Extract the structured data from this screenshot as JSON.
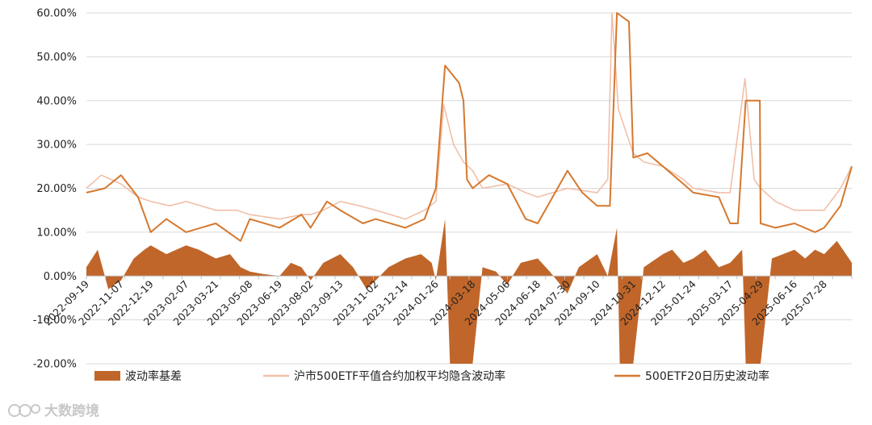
{
  "watermark": {
    "text": "大数跨境",
    "icon": "logo-icon"
  },
  "chart_data": {
    "type": "line",
    "title": "",
    "xlabel": "",
    "ylabel": "",
    "ylim": [
      -0.2,
      0.6
    ],
    "y_ticks": [
      "60.00%",
      "50.00%",
      "40.00%",
      "30.00%",
      "20.00%",
      "10.00%",
      "0.00%",
      "-10.00%",
      "-20.00%"
    ],
    "x_ticks": [
      "2022-09-19",
      "2022-11-07",
      "2022-12-19",
      "2023-02-07",
      "2023-03-21",
      "2023-05-08",
      "2023-06-19",
      "2023-08-02",
      "2023-09-13",
      "2023-11-02",
      "2023-12-14",
      "2024-01-26",
      "2024-03-18",
      "2024-05-06",
      "2024-06-18",
      "2024-07-30",
      "2024-09-10",
      "2024-10-31",
      "2024-12-12",
      "2025-01-24",
      "2025-03-17",
      "2025-04-29",
      "2025-06-16",
      "2025-07-28"
    ],
    "x_range": [
      "2022-09-19",
      "2025-09-05"
    ],
    "grid": "horizontal",
    "legend_position": "bottom",
    "colors": {
      "basis": "#c0662a",
      "implied": "#f2bfa8",
      "historical": "#d5782e",
      "axis": "#bfbfbf",
      "grid": "#d9d9d9"
    },
    "series": [
      {
        "name": "波动率基差",
        "type": "area",
        "points": [
          [
            "2022-09-19",
            0.02
          ],
          [
            "2022-10-05",
            0.06
          ],
          [
            "2022-10-20",
            -0.03
          ],
          [
            "2022-11-07",
            -0.01
          ],
          [
            "2022-11-25",
            0.04
          ],
          [
            "2022-12-10",
            0.06
          ],
          [
            "2022-12-19",
            0.07
          ],
          [
            "2023-01-10",
            0.05
          ],
          [
            "2023-02-07",
            0.07
          ],
          [
            "2023-02-25",
            0.06
          ],
          [
            "2023-03-21",
            0.04
          ],
          [
            "2023-04-10",
            0.05
          ],
          [
            "2023-04-25",
            0.02
          ],
          [
            "2023-05-08",
            0.01
          ],
          [
            "2023-05-25",
            0.005
          ],
          [
            "2023-06-19",
            0.0
          ],
          [
            "2023-07-05",
            0.03
          ],
          [
            "2023-07-20",
            0.02
          ],
          [
            "2023-08-02",
            -0.01
          ],
          [
            "2023-08-20",
            0.03
          ],
          [
            "2023-09-13",
            0.05
          ],
          [
            "2023-10-01",
            0.02
          ],
          [
            "2023-10-20",
            -0.03
          ],
          [
            "2023-11-02",
            -0.01
          ],
          [
            "2023-11-20",
            0.02
          ],
          [
            "2023-12-14",
            0.04
          ],
          [
            "2024-01-05",
            0.05
          ],
          [
            "2024-01-20",
            0.03
          ],
          [
            "2024-01-26",
            -0.01
          ],
          [
            "2024-02-08",
            0.13
          ],
          [
            "2024-02-15",
            -0.2
          ],
          [
            "2024-03-18",
            -0.2
          ],
          [
            "2024-04-01",
            0.02
          ],
          [
            "2024-04-20",
            0.01
          ],
          [
            "2024-05-06",
            -0.02
          ],
          [
            "2024-05-25",
            0.03
          ],
          [
            "2024-06-18",
            0.04
          ],
          [
            "2024-07-05",
            0.01
          ],
          [
            "2024-07-30",
            -0.04
          ],
          [
            "2024-08-15",
            0.02
          ],
          [
            "2024-09-10",
            0.05
          ],
          [
            "2024-09-25",
            0.0
          ],
          [
            "2024-10-08",
            0.11
          ],
          [
            "2024-10-12",
            -0.2
          ],
          [
            "2024-10-31",
            -0.2
          ],
          [
            "2024-11-15",
            0.02
          ],
          [
            "2024-12-12",
            0.05
          ],
          [
            "2024-12-25",
            0.06
          ],
          [
            "2025-01-10",
            0.03
          ],
          [
            "2025-01-24",
            0.04
          ],
          [
            "2025-02-10",
            0.06
          ],
          [
            "2025-03-01",
            0.02
          ],
          [
            "2025-03-17",
            0.03
          ],
          [
            "2025-04-03",
            0.06
          ],
          [
            "2025-04-08",
            -0.2
          ],
          [
            "2025-04-29",
            -0.2
          ],
          [
            "2025-05-15",
            0.04
          ],
          [
            "2025-06-16",
            0.06
          ],
          [
            "2025-07-01",
            0.04
          ],
          [
            "2025-07-15",
            0.06
          ],
          [
            "2025-07-28",
            0.05
          ],
          [
            "2025-08-15",
            0.08
          ],
          [
            "2025-09-05",
            0.03
          ]
        ]
      },
      {
        "name": "沪市500ETF平值合约加权平均隐含波动率",
        "type": "line",
        "points": [
          [
            "2022-09-19",
            0.2
          ],
          [
            "2022-10-10",
            0.23
          ],
          [
            "2022-11-07",
            0.21
          ],
          [
            "2022-12-01",
            0.18
          ],
          [
            "2022-12-19",
            0.17
          ],
          [
            "2023-01-15",
            0.16
          ],
          [
            "2023-02-07",
            0.17
          ],
          [
            "2023-03-21",
            0.15
          ],
          [
            "2023-04-20",
            0.15
          ],
          [
            "2023-05-08",
            0.14
          ],
          [
            "2023-06-19",
            0.13
          ],
          [
            "2023-07-20",
            0.14
          ],
          [
            "2023-08-02",
            0.14
          ],
          [
            "2023-08-20",
            0.15
          ],
          [
            "2023-09-13",
            0.17
          ],
          [
            "2023-10-10",
            0.16
          ],
          [
            "2023-11-02",
            0.15
          ],
          [
            "2023-12-14",
            0.13
          ],
          [
            "2024-01-10",
            0.15
          ],
          [
            "2024-01-26",
            0.17
          ],
          [
            "2024-02-06",
            0.39
          ],
          [
            "2024-02-20",
            0.3
          ],
          [
            "2024-03-05",
            0.26
          ],
          [
            "2024-03-18",
            0.24
          ],
          [
            "2024-04-01",
            0.2
          ],
          [
            "2024-05-06",
            0.21
          ],
          [
            "2024-06-01",
            0.19
          ],
          [
            "2024-06-18",
            0.18
          ],
          [
            "2024-07-30",
            0.2
          ],
          [
            "2024-09-10",
            0.19
          ],
          [
            "2024-09-25",
            0.22
          ],
          [
            "2024-10-01",
            0.6
          ],
          [
            "2024-10-10",
            0.38
          ],
          [
            "2024-10-31",
            0.28
          ],
          [
            "2024-11-15",
            0.26
          ],
          [
            "2024-12-12",
            0.25
          ],
          [
            "2025-01-10",
            0.22
          ],
          [
            "2025-01-24",
            0.2
          ],
          [
            "2025-03-01",
            0.19
          ],
          [
            "2025-03-17",
            0.19
          ],
          [
            "2025-04-07",
            0.45
          ],
          [
            "2025-04-20",
            0.22
          ],
          [
            "2025-04-29",
            0.2
          ],
          [
            "2025-05-20",
            0.17
          ],
          [
            "2025-06-16",
            0.15
          ],
          [
            "2025-07-28",
            0.15
          ],
          [
            "2025-08-20",
            0.2
          ],
          [
            "2025-09-05",
            0.25
          ]
        ]
      },
      {
        "name": "500ETF20日历史波动率",
        "type": "line",
        "points": [
          [
            "2022-09-19",
            0.19
          ],
          [
            "2022-10-15",
            0.2
          ],
          [
            "2022-11-07",
            0.23
          ],
          [
            "2022-12-01",
            0.18
          ],
          [
            "2022-12-19",
            0.1
          ],
          [
            "2023-01-10",
            0.13
          ],
          [
            "2023-02-07",
            0.1
          ],
          [
            "2023-03-21",
            0.12
          ],
          [
            "2023-04-25",
            0.08
          ],
          [
            "2023-05-08",
            0.13
          ],
          [
            "2023-06-19",
            0.11
          ],
          [
            "2023-07-20",
            0.14
          ],
          [
            "2023-08-02",
            0.11
          ],
          [
            "2023-08-25",
            0.17
          ],
          [
            "2023-09-13",
            0.15
          ],
          [
            "2023-10-15",
            0.12
          ],
          [
            "2023-11-02",
            0.13
          ],
          [
            "2023-12-14",
            0.11
          ],
          [
            "2024-01-10",
            0.13
          ],
          [
            "2024-01-26",
            0.2
          ],
          [
            "2024-02-08",
            0.48
          ],
          [
            "2024-02-28",
            0.44
          ],
          [
            "2024-03-05",
            0.4
          ],
          [
            "2024-03-10",
            0.22
          ],
          [
            "2024-03-18",
            0.2
          ],
          [
            "2024-04-10",
            0.23
          ],
          [
            "2024-05-06",
            0.21
          ],
          [
            "2024-06-01",
            0.13
          ],
          [
            "2024-06-18",
            0.12
          ],
          [
            "2024-07-30",
            0.24
          ],
          [
            "2024-08-20",
            0.19
          ],
          [
            "2024-09-10",
            0.16
          ],
          [
            "2024-09-28",
            0.16
          ],
          [
            "2024-10-08",
            0.6
          ],
          [
            "2024-10-25",
            0.58
          ],
          [
            "2024-10-31",
            0.27
          ],
          [
            "2024-11-20",
            0.28
          ],
          [
            "2024-12-12",
            0.25
          ],
          [
            "2025-01-10",
            0.21
          ],
          [
            "2025-01-24",
            0.19
          ],
          [
            "2025-03-01",
            0.18
          ],
          [
            "2025-03-17",
            0.12
          ],
          [
            "2025-03-28",
            0.12
          ],
          [
            "2025-04-08",
            0.4
          ],
          [
            "2025-04-28",
            0.4
          ],
          [
            "2025-04-29",
            0.12
          ],
          [
            "2025-05-20",
            0.11
          ],
          [
            "2025-06-16",
            0.12
          ],
          [
            "2025-07-15",
            0.1
          ],
          [
            "2025-07-28",
            0.11
          ],
          [
            "2025-08-20",
            0.16
          ],
          [
            "2025-09-05",
            0.25
          ]
        ]
      }
    ]
  }
}
